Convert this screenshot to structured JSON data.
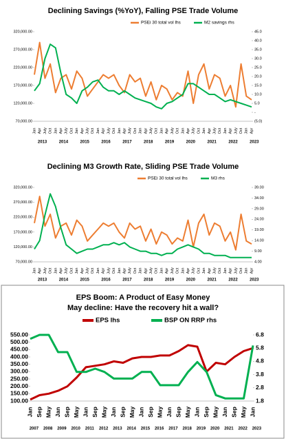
{
  "chart_data": [
    {
      "type": "line",
      "title": "Declining Savings (%YoY), Falling PSE Trade Volume",
      "categories": [
        "Jan",
        "Apr",
        "July",
        "Oct",
        "Jan",
        "Apr",
        "July",
        "Oct",
        "Jan",
        "Apr",
        "July",
        "Oct",
        "Jan",
        "Apr",
        "July",
        "Oct",
        "Jan",
        "Apr",
        "July",
        "Oct",
        "Jan",
        "Apr",
        "July",
        "Oct",
        "Jan",
        "Apr",
        "July",
        "Oct",
        "Jan",
        "Apr",
        "July",
        "Oct",
        "Jan",
        "Apr",
        "July",
        "Oct",
        "Jan",
        "Apr",
        "July",
        "Oct",
        "Jan",
        "Apr"
      ],
      "year_labels": [
        "2013",
        "2014",
        "2015",
        "2016",
        "2017",
        "2018",
        "2019",
        "2020",
        "2021",
        "2022",
        "2023"
      ],
      "series": [
        {
          "name": "PSEi 30  total vol lhs",
          "color": "#ed7d31",
          "values": [
            200000,
            290000,
            190000,
            230000,
            150000,
            190000,
            200000,
            160000,
            210000,
            190000,
            140000,
            160000,
            180000,
            200000,
            190000,
            200000,
            170000,
            150000,
            200000,
            180000,
            190000,
            140000,
            180000,
            130000,
            170000,
            160000,
            130000,
            150000,
            140000,
            210000,
            120000,
            200000,
            230000,
            160000,
            200000,
            190000,
            140000,
            170000,
            110000,
            230000,
            140000,
            130000
          ]
        },
        {
          "name": "M2 savings rhs",
          "color": "#00b050",
          "axis": "y2",
          "values": [
            12,
            16,
            30,
            38,
            36,
            22,
            10,
            8,
            5,
            12,
            14,
            17,
            18,
            14,
            12,
            12,
            10,
            12,
            10,
            8,
            7,
            6,
            5,
            3,
            2,
            5,
            6,
            8,
            10,
            16,
            16,
            14,
            12,
            10,
            10,
            8,
            6,
            7,
            6,
            5,
            4,
            3
          ]
        }
      ],
      "ylim": [
        70000,
        320000
      ],
      "yticks": [
        {
          "value": 70000,
          "label": "70,000.00"
        },
        {
          "value": 120000,
          "label": "120,000.00"
        },
        {
          "value": 170000,
          "label": "170,000.00"
        },
        {
          "value": 220000,
          "label": "220,000.00"
        },
        {
          "value": 270000,
          "label": "270,000.00"
        },
        {
          "value": 320000,
          "label": "320,000.00"
        }
      ],
      "y2lim": [
        -5,
        45
      ],
      "y2ticks": [
        {
          "value": -5,
          "label": "(5.0)"
        },
        {
          "value": 0,
          "label": "-"
        },
        {
          "value": 5,
          "label": "5.0"
        },
        {
          "value": 10,
          "label": "10.0"
        },
        {
          "value": 15,
          "label": "15.0"
        },
        {
          "value": 20,
          "label": "20.0"
        },
        {
          "value": 25,
          "label": "25.0"
        },
        {
          "value": 30,
          "label": "30.0"
        },
        {
          "value": 35,
          "label": "35.0"
        },
        {
          "value": 40,
          "label": "40.0"
        },
        {
          "value": 45,
          "label": "45.0"
        }
      ]
    },
    {
      "type": "line",
      "title": "Declining M3 Growth Rate, Sliding PSE Trade Volume",
      "categories": [
        "Jan",
        "Apr",
        "July",
        "Oct",
        "Jan",
        "Apr",
        "July",
        "Oct",
        "Jan",
        "Apr",
        "July",
        "Oct",
        "Jan",
        "Apr",
        "July",
        "Oct",
        "Jan",
        "Apr",
        "July",
        "Oct",
        "Jan",
        "Apr",
        "July",
        "Oct",
        "Jan",
        "Apr",
        "July",
        "Oct",
        "Jan",
        "Apr",
        "July",
        "Oct",
        "Jan",
        "Apr",
        "July",
        "Oct",
        "Jan",
        "Apr",
        "July",
        "Oct",
        "Jan",
        "Apr"
      ],
      "year_labels": [
        "2013",
        "2014",
        "2015",
        "2016",
        "2017",
        "2018",
        "2019",
        "2020",
        "2021",
        "2022",
        "2023"
      ],
      "series": [
        {
          "name": "PSEi 30 total vol lhs",
          "color": "#ed7d31",
          "values": [
            200000,
            290000,
            190000,
            230000,
            150000,
            190000,
            200000,
            160000,
            210000,
            190000,
            140000,
            160000,
            180000,
            200000,
            190000,
            200000,
            170000,
            150000,
            200000,
            180000,
            190000,
            140000,
            180000,
            130000,
            170000,
            160000,
            130000,
            150000,
            140000,
            210000,
            120000,
            200000,
            230000,
            160000,
            200000,
            190000,
            140000,
            170000,
            110000,
            230000,
            140000,
            130000
          ]
        },
        {
          "name": "M3 rhs",
          "color": "#00b050",
          "axis": "y2",
          "values": [
            10,
            14,
            26,
            36,
            30,
            20,
            12,
            10,
            8,
            9,
            10,
            10,
            11,
            12,
            12,
            13,
            12,
            13,
            11,
            10,
            9,
            9,
            8,
            8,
            7,
            8,
            8,
            10,
            11,
            12,
            11,
            10,
            8,
            8,
            7,
            7,
            7,
            6,
            6,
            6,
            6,
            6
          ]
        }
      ],
      "ylim": [
        70000,
        320000
      ],
      "yticks": [
        {
          "value": 70000,
          "label": "70,000.00"
        },
        {
          "value": 120000,
          "label": "120,000.00"
        },
        {
          "value": 170000,
          "label": "170,000.00"
        },
        {
          "value": 220000,
          "label": "220,000.00"
        },
        {
          "value": 270000,
          "label": "270,000.00"
        },
        {
          "value": 320000,
          "label": "320,000.00"
        }
      ],
      "y2lim": [
        4,
        39
      ],
      "y2ticks": [
        {
          "value": 4,
          "label": "4.00"
        },
        {
          "value": 9,
          "label": "9.00"
        },
        {
          "value": 14,
          "label": "14.00"
        },
        {
          "value": 19,
          "label": "19.00"
        },
        {
          "value": 24,
          "label": "24.00"
        },
        {
          "value": 29,
          "label": "29.00"
        },
        {
          "value": 34,
          "label": "34.00"
        },
        {
          "value": 39,
          "label": "39.00"
        }
      ]
    },
    {
      "type": "line",
      "title": "EPS Boom: A Product of Easy Money",
      "subtitle": "May decline: Have the recovery hit a wall?",
      "categories": [
        "Jan",
        "Sep",
        "May",
        "Jan",
        "Sep",
        "May",
        "Jan",
        "Sep",
        "May",
        "Jan",
        "Sep",
        "May",
        "Jan",
        "Sep",
        "May",
        "Jan",
        "Sep",
        "May",
        "Jan",
        "Sep",
        "May",
        "Jan",
        "Sep",
        "May",
        "Jan"
      ],
      "year_labels": [
        "2007",
        "2008",
        "2009",
        "2010",
        "2011",
        "2012",
        "2013",
        "2014",
        "2015",
        "2016",
        "2017",
        "2018",
        "2019",
        "2020",
        "2021",
        "2022",
        "2023"
      ],
      "series": [
        {
          "name": "EPS lhs",
          "color": "#c00000",
          "values": [
            110,
            140,
            150,
            170,
            200,
            260,
            330,
            340,
            350,
            370,
            360,
            390,
            400,
            400,
            410,
            410,
            440,
            480,
            470,
            300,
            360,
            350,
            400,
            440,
            460
          ]
        },
        {
          "name": "BSP ON RRP rhs",
          "color": "#00b050",
          "axis": "y2",
          "values": [
            6.5,
            6.8,
            6.8,
            5.5,
            5.5,
            4.0,
            4.0,
            4.25,
            4.0,
            3.5,
            3.5,
            3.5,
            4.0,
            4.0,
            3.0,
            3.0,
            3.0,
            4.0,
            4.75,
            4.0,
            2.25,
            2.0,
            2.0,
            2.0,
            6.0
          ]
        }
      ],
      "ylim": [
        100,
        550
      ],
      "yticks": [
        {
          "value": 100,
          "label": "100.00"
        },
        {
          "value": 150,
          "label": "150.00"
        },
        {
          "value": 200,
          "label": "200.00"
        },
        {
          "value": 250,
          "label": "250.00"
        },
        {
          "value": 300,
          "label": "300.00"
        },
        {
          "value": 350,
          "label": "350.00"
        },
        {
          "value": 400,
          "label": "400.00"
        },
        {
          "value": 450,
          "label": "450.00"
        },
        {
          "value": 500,
          "label": "500.00"
        },
        {
          "value": 550,
          "label": "550.00"
        }
      ],
      "y2lim": [
        1.8,
        6.8
      ],
      "y2ticks": [
        1.8,
        2.8,
        3.8,
        4.8,
        5.8,
        6.8
      ]
    }
  ]
}
